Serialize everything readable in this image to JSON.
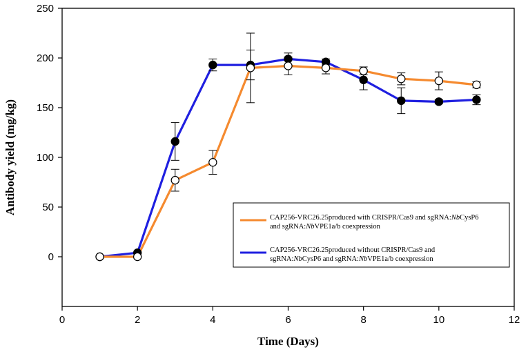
{
  "chart_data": {
    "type": "line",
    "xlabel": "Time (Days)",
    "ylabel": "Antibody yield (mg/kg)",
    "xlim": [
      0,
      12
    ],
    "ylim": [
      -50,
      250
    ],
    "xticks": [
      0,
      2,
      4,
      6,
      8,
      10,
      12
    ],
    "yticks": [
      0,
      50,
      100,
      150,
      200,
      250
    ],
    "legend_position": "right-middle",
    "series": [
      {
        "name": "CAP256-VRC26.25 produced with CRISPR/Cas9 and sgRNA:NbCysP6 and sgRNA:NbVPE1a/b coexpression",
        "legend_lines": [
          [
            {
              "t": "CAP256-VRC26.25produced with CRISPR/Cas9 and sgRNA:",
              "i": false
            },
            {
              "t": "Nb",
              "i": true
            },
            {
              "t": "CysP6",
              "i": false
            }
          ],
          [
            {
              "t": "and sgRNA:",
              "i": false
            },
            {
              "t": "Nb",
              "i": true
            },
            {
              "t": "VPE1a/b coexpression",
              "i": false
            }
          ]
        ],
        "color": "#F58A2F",
        "marker": "open-circle",
        "x": [
          1,
          2,
          3,
          4,
          5,
          6,
          7,
          8,
          9,
          10,
          11
        ],
        "y": [
          0,
          0,
          77,
          95,
          190,
          192,
          190,
          187,
          179,
          177,
          173
        ],
        "err": [
          0,
          0,
          11,
          12,
          35,
          9,
          6,
          4,
          6,
          9,
          3
        ]
      },
      {
        "name": "CAP256-VRC26.25 produced without CRISPR/Cas9 and sgRNA:NbCysP6 and sgRNA:NbVPE1a/b coexpression",
        "legend_lines": [
          [
            {
              "t": "CAP256-VRC26.25produced without CRISPR/Cas9 and",
              "i": false
            }
          ],
          [
            {
              "t": "sgRNA:",
              "i": false
            },
            {
              "t": "Nb",
              "i": true
            },
            {
              "t": "CysP6 and sgRNA:",
              "i": false
            },
            {
              "t": "Nb",
              "i": true
            },
            {
              "t": "VPE1a/b coexpression",
              "i": false
            }
          ]
        ],
        "color": "#1F1FE0",
        "marker": "filled-circle",
        "x": [
          1,
          2,
          3,
          4,
          5,
          6,
          7,
          8,
          9,
          10,
          11
        ],
        "y": [
          0,
          4,
          116,
          193,
          193,
          199,
          196,
          178,
          157,
          156,
          158
        ],
        "err": [
          0,
          0,
          19,
          6,
          15,
          6,
          3,
          10,
          13,
          2,
          5
        ]
      }
    ]
  }
}
